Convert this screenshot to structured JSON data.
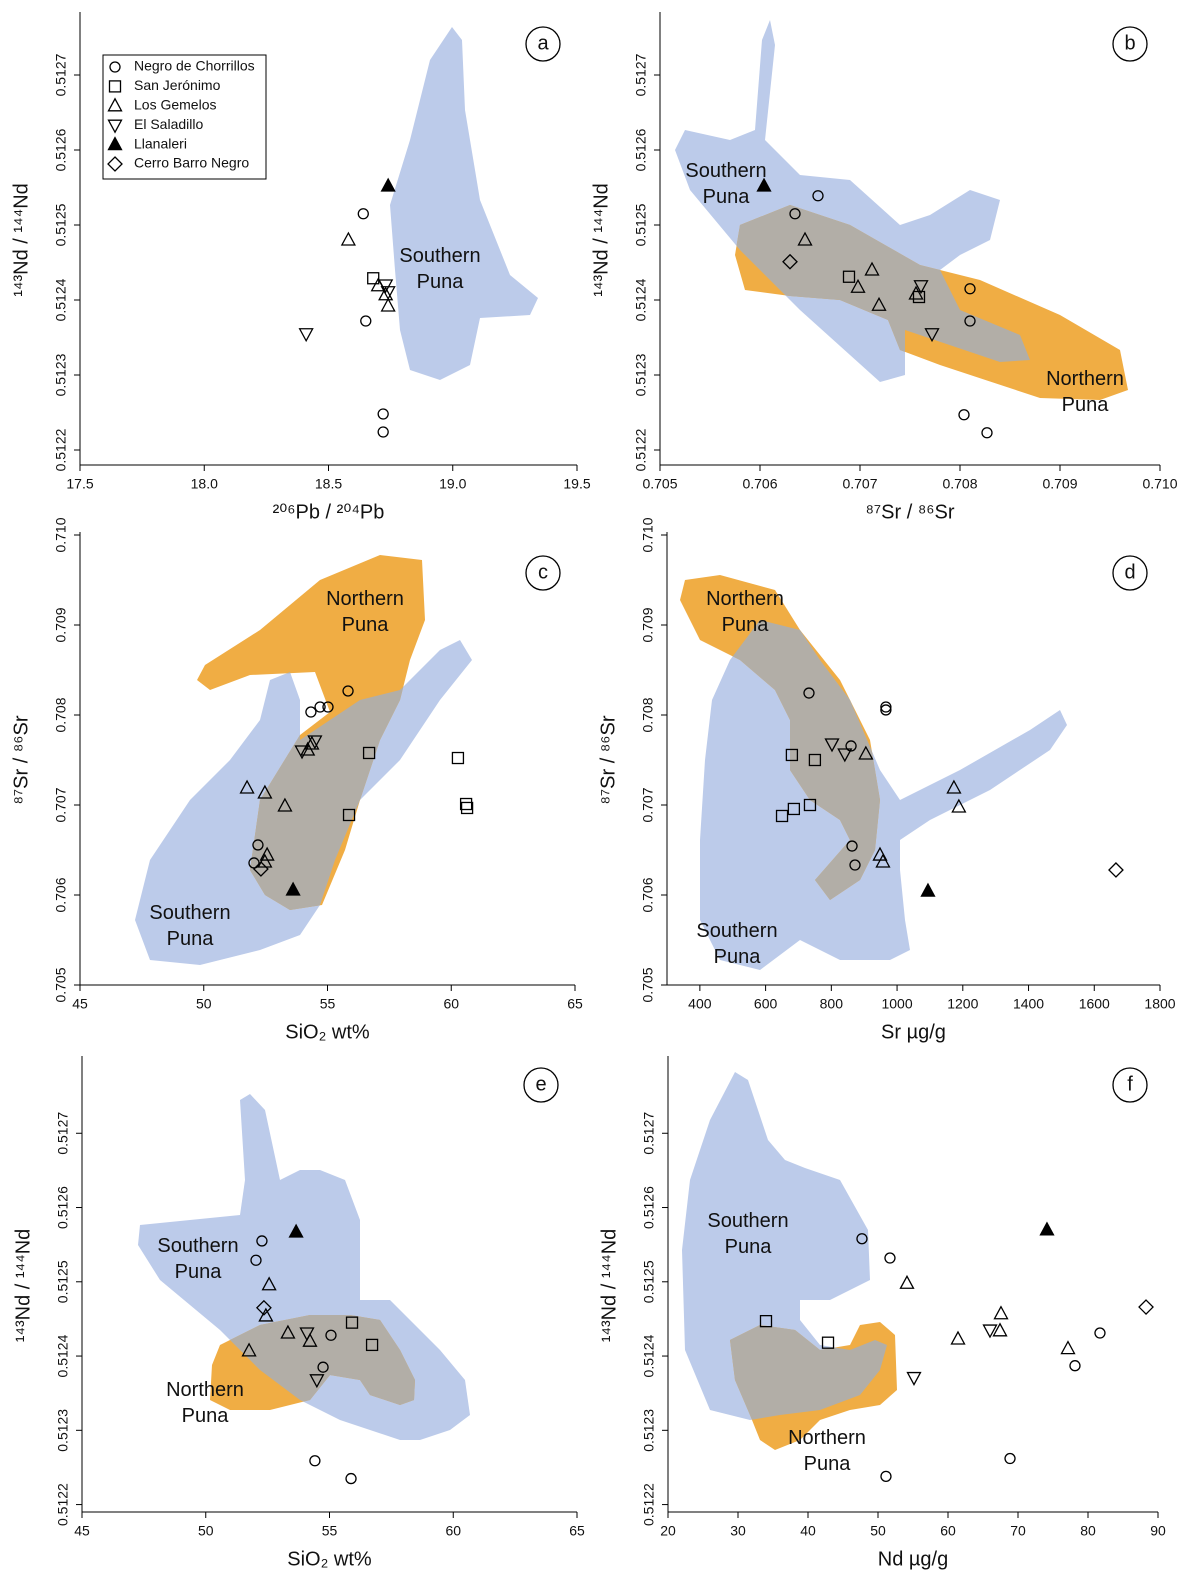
{
  "chart_data": [
    {
      "type": "scatter",
      "panel_label": "a",
      "x_label": "²⁰⁶Pb / ²⁰⁴Pb",
      "y_label": "¹⁴³Nd / ¹⁴⁴Nd",
      "xlim": [
        17.5,
        19.5
      ],
      "xticks": [
        17.5,
        {
          "value": 18,
          "label": "18.0"
        },
        18.5,
        {
          "value": 19,
          "label": "19.0"
        },
        19.5
      ],
      "ylim": [
        0.51218,
        0.51278
      ],
      "yticks": [
        0.5122,
        0.5123,
        0.5124,
        0.5125,
        0.5126,
        0.5127
      ],
      "fields": [
        {
          "label": [
            "Southern",
            "Puna"
          ],
          "color": "#bccbea"
        }
      ],
      "series": [
        {
          "name": "Negro de Chorrillos",
          "marker": "circle",
          "filled": false,
          "x": [
            18.64,
            18.65,
            18.72,
            18.72
          ],
          "values": [
            0.512515,
            0.512372,
            0.512248,
            0.512224
          ]
        },
        {
          "name": "San Jerónimo",
          "marker": "square",
          "filled": false,
          "x": [
            18.68
          ],
          "values": [
            0.512429
          ]
        },
        {
          "name": "Los Gemelos",
          "marker": "triangle",
          "filled": false,
          "x": [
            18.58,
            18.7,
            18.73,
            18.74
          ],
          "values": [
            0.51248,
            0.512419,
            0.512407,
            0.512392
          ]
        },
        {
          "name": "El Saladillo",
          "marker": "triangle-down",
          "filled": false,
          "x": [
            18.41,
            18.73,
            18.74
          ],
          "values": [
            0.512355,
            0.51242,
            0.512411
          ]
        },
        {
          "name": "Llanaleri",
          "marker": "triangle",
          "filled": true,
          "x": [
            18.74
          ],
          "values": [
            0.512552
          ]
        },
        {
          "name": "Cerro Barro Negro",
          "marker": "diamond",
          "filled": false,
          "x": [],
          "values": []
        }
      ]
    },
    {
      "type": "scatter",
      "panel_label": "b",
      "x_label": "⁸⁷Sr / ⁸⁶Sr",
      "y_label": "¹⁴³Nd / ¹⁴⁴Nd",
      "xlim": [
        0.705,
        0.71
      ],
      "xticks": [
        0.705,
        0.706,
        0.707,
        0.708,
        0.709,
        {
          "value": 0.71,
          "label": "0.710"
        }
      ],
      "ylim": [
        0.51218,
        0.51278
      ],
      "yticks": [
        0.5122,
        0.5123,
        0.5124,
        0.5125,
        0.5126,
        0.5127
      ],
      "fields": [
        {
          "label": [
            "Southern",
            "Puna"
          ],
          "color": "#bccbea"
        },
        {
          "label": [
            "Northern",
            "Puna"
          ],
          "color": "#f0ad44"
        }
      ],
      "overlap_color": "#b2aea7",
      "series": [
        {
          "marker": "circle",
          "filled": false,
          "x": [
            0.70635,
            0.70658,
            0.7081,
            0.7081,
            0.70804,
            0.70827
          ],
          "values": [
            0.512515,
            0.512539,
            0.512415,
            0.512372,
            0.512247,
            0.512223
          ]
        },
        {
          "marker": "square",
          "filled": false,
          "x": [
            0.70689,
            0.70759
          ],
          "values": [
            0.512431,
            0.512404
          ]
        },
        {
          "marker": "triangle",
          "filled": false,
          "x": [
            0.70645,
            0.70698,
            0.70712,
            0.70719,
            0.70756
          ],
          "values": [
            0.51248,
            0.512417,
            0.51244,
            0.512393,
            0.512408
          ]
        },
        {
          "marker": "triangle-down",
          "filled": false,
          "x": [
            0.70761,
            0.70772
          ],
          "values": [
            0.512419,
            0.512355
          ]
        },
        {
          "marker": "triangle",
          "filled": true,
          "x": [
            0.70604
          ],
          "values": [
            0.512552
          ]
        },
        {
          "marker": "diamond",
          "filled": false,
          "x": [
            0.7063
          ],
          "values": [
            0.512451
          ]
        }
      ]
    },
    {
      "type": "scatter",
      "panel_label": "c",
      "x_label": "SiO₂  wt%",
      "y_label": "⁸⁷Sr / ⁸⁶Sr",
      "xlim": [
        45,
        65
      ],
      "xticks": [
        45,
        50,
        55,
        60,
        65
      ],
      "ylim": [
        0.705,
        0.71
      ],
      "yticks": [
        0.705,
        0.706,
        0.707,
        0.708,
        0.709,
        {
          "value": 0.71,
          "label": "0.710"
        }
      ],
      "fields": [
        {
          "label": [
            "Southern",
            "Puna"
          ],
          "color": "#bccbea"
        },
        {
          "label": [
            "Northern",
            "Puna"
          ],
          "color": "#f0ad44"
        }
      ],
      "overlap_color": "#b2aea7",
      "series": [
        {
          "marker": "circle",
          "filled": false,
          "x": [
            55.83,
            55.02,
            54.7,
            54.33,
            52.19,
            52.03
          ],
          "values": [
            0.708267,
            0.708089,
            0.708089,
            0.708033,
            0.706556,
            0.706356
          ]
        },
        {
          "marker": "square",
          "filled": false,
          "x": [
            56.68,
            55.87,
            60.27,
            60.6,
            60.64
          ],
          "values": [
            0.707578,
            0.706889,
            0.707522,
            0.707011,
            0.706967
          ]
        },
        {
          "marker": "triangle",
          "filled": false,
          "x": [
            51.75,
            52.47,
            53.28,
            54.2,
            54.37,
            52.56,
            52.47
          ],
          "values": [
            0.707189,
            0.707133,
            0.706989,
            0.707611,
            0.707678,
            0.706444,
            0.706367
          ]
        },
        {
          "marker": "triangle-down",
          "filled": false,
          "x": [
            53.97,
            54.49
          ],
          "values": [
            0.7076,
            0.707711
          ]
        },
        {
          "marker": "triangle",
          "filled": true,
          "x": [
            53.61
          ],
          "values": [
            0.706056
          ]
        },
        {
          "marker": "diamond",
          "filled": false,
          "x": [
            52.31
          ],
          "values": [
            0.706289
          ]
        }
      ]
    },
    {
      "type": "scatter",
      "panel_label": "d",
      "x_label": "Sr µg/g",
      "y_label": "⁸⁷Sr / ⁸⁶Sr",
      "xlim": [
        300,
        1800
      ],
      "xticks": [
        400,
        600,
        800,
        1000,
        1200,
        1400,
        1600,
        1800
      ],
      "ylim": [
        0.705,
        0.71
      ],
      "yticks": [
        0.705,
        0.706,
        0.707,
        0.708,
        0.709,
        {
          "value": 0.71,
          "label": "0.710"
        }
      ],
      "fields": [
        {
          "label": [
            "Southern",
            "Puna"
          ],
          "color": "#bccbea"
        },
        {
          "label": [
            "Northern",
            "Puna"
          ],
          "color": "#f0ad44"
        }
      ],
      "overlap_color": "#b2aea7",
      "series": [
        {
          "marker": "circle",
          "filled": false,
          "x": [
            732,
            860,
            863,
            966,
            966,
            872
          ],
          "values": [
            0.708244,
            0.707656,
            0.706544,
            0.708089,
            0.708056,
            0.706333
          ]
        },
        {
          "marker": "square",
          "filled": false,
          "x": [
            680,
            750,
            686,
            735,
            650
          ],
          "values": [
            0.707556,
            0.7075,
            0.706956,
            0.707,
            0.706878
          ]
        },
        {
          "marker": "triangle",
          "filled": false,
          "x": [
            905,
            1173,
            1188,
            948,
            957
          ],
          "values": [
            0.707567,
            0.707189,
            0.706978,
            0.706444,
            0.706367
          ]
        },
        {
          "marker": "triangle-down",
          "filled": false,
          "x": [
            802,
            841
          ],
          "values": [
            0.707678,
            0.707567
          ]
        },
        {
          "marker": "triangle",
          "filled": true,
          "x": [
            1094
          ],
          "values": [
            0.706044
          ]
        },
        {
          "marker": "diamond",
          "filled": false,
          "x": [
            1666
          ],
          "values": [
            0.706278
          ]
        }
      ]
    },
    {
      "type": "scatter",
      "panel_label": "e",
      "x_label": "SiO₂  wt%",
      "y_label": "¹⁴³Nd / ¹⁴⁴Nd",
      "xlim": [
        45,
        65
      ],
      "xticks": [
        45,
        50,
        55,
        60,
        65
      ],
      "ylim": [
        0.51219,
        0.5128
      ],
      "yticks": [
        0.5122,
        0.5123,
        0.5124,
        0.5125,
        0.5126,
        0.5127
      ],
      "fields": [
        {
          "label": [
            "Southern",
            "Puna"
          ],
          "color": "#bccbea"
        },
        {
          "label": [
            "Northern",
            "Puna"
          ],
          "color": "#f0ad44"
        }
      ],
      "overlap_color": "#b2aea7",
      "series": [
        {
          "marker": "circle",
          "filled": false,
          "x": [
            52.27,
            52.03,
            55.06,
            54.74,
            54.41,
            55.87
          ],
          "values": [
            0.512555,
            0.512529,
            0.512428,
            0.512385,
            0.512259,
            0.512235
          ]
        },
        {
          "marker": "square",
          "filled": false,
          "x": [
            55.91,
            56.72
          ],
          "values": [
            0.512445,
            0.512415
          ]
        },
        {
          "marker": "triangle",
          "filled": false,
          "x": [
            52.56,
            52.43,
            53.32,
            54.21,
            51.75
          ],
          "values": [
            0.512496,
            0.512454,
            0.512431,
            0.51242,
            0.512407
          ]
        },
        {
          "marker": "triangle-down",
          "filled": false,
          "x": [
            54.09,
            54.49
          ],
          "values": [
            0.512431,
            0.512368
          ]
        },
        {
          "marker": "triangle",
          "filled": true,
          "x": [
            53.65
          ],
          "values": [
            0.512567
          ]
        },
        {
          "marker": "diamond",
          "filled": false,
          "x": [
            52.35
          ],
          "values": [
            0.512465
          ]
        }
      ]
    },
    {
      "type": "scatter",
      "panel_label": "f",
      "x_label": "Nd µg/g",
      "y_label": "¹⁴³Nd / ¹⁴⁴Nd",
      "xlim": [
        20,
        90
      ],
      "xticks": [
        20,
        30,
        40,
        50,
        60,
        70,
        80,
        90
      ],
      "ylim": [
        0.51219,
        0.5128
      ],
      "yticks": [
        0.5122,
        0.5123,
        0.5124,
        0.5125,
        0.5126,
        0.5127
      ],
      "fields": [
        {
          "label": [
            "Southern",
            "Puna"
          ],
          "color": "#bccbea"
        },
        {
          "label": [
            "Northern",
            "Puna"
          ],
          "color": "#f0ad44"
        }
      ],
      "overlap_color": "#b2aea7",
      "series": [
        {
          "marker": "circle",
          "filled": false,
          "x": [
            47.71,
            51.71,
            81.71,
            78.14,
            68.86,
            51.14
          ],
          "values": [
            0.512558,
            0.512532,
            0.512431,
            0.512387,
            0.512262,
            0.512238
          ]
        },
        {
          "marker": "square",
          "filled": false,
          "x": [
            34,
            42.86
          ],
          "values": [
            0.512447,
            0.512418
          ]
        },
        {
          "marker": "triangle",
          "filled": false,
          "x": [
            54.14,
            67.57,
            67.43,
            61.43,
            77.14
          ],
          "values": [
            0.512498,
            0.512457,
            0.512434,
            0.512423,
            0.51241
          ]
        },
        {
          "marker": "triangle-down",
          "filled": false,
          "x": [
            66,
            55.14
          ],
          "values": [
            0.512435,
            0.512371
          ]
        },
        {
          "marker": "triangle",
          "filled": true,
          "x": [
            74.14
          ],
          "values": [
            0.51257
          ]
        },
        {
          "marker": "diamond",
          "filled": false,
          "x": [
            88.29
          ],
          "values": [
            0.512466
          ]
        }
      ]
    }
  ]
}
